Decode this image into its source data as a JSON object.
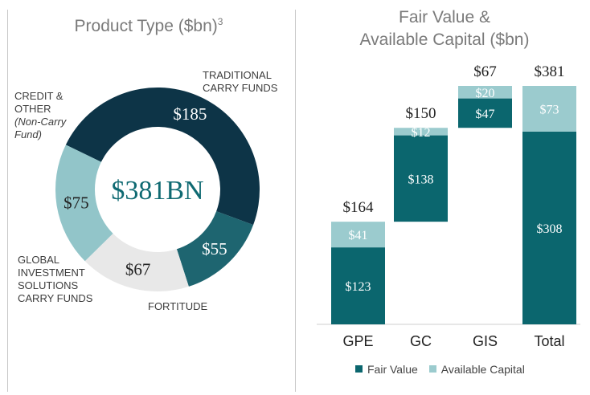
{
  "donut": {
    "title": "Product Type ($bn)",
    "title_sup": "3",
    "center_label": "$381BN",
    "labels": {
      "traditional": "TRADITIONAL\nCARRY FUNDS",
      "credit": "CREDIT &\nOTHER",
      "credit_sub": "(Non-Carry\nFund)",
      "gis": "GLOBAL\nINVESTMENT\nSOLUTIONS\nCARRY FUNDS",
      "fortitude": "FORTITUDE"
    }
  },
  "bars": {
    "title_line1": "Fair Value &",
    "title_line2": "Available Capital ($bn)"
  },
  "chart_data": [
    {
      "type": "pie",
      "title": "Product Type ($bn)",
      "total_label": "$381BN",
      "slices": [
        {
          "name": "TRADITIONAL CARRY FUNDS",
          "value": 185,
          "label": "$185",
          "color": "#0d3447"
        },
        {
          "name": "FORTITUDE",
          "value": 55,
          "label": "$55",
          "color": "#1e6570"
        },
        {
          "name": "GLOBAL INVESTMENT SOLUTIONS CARRY FUNDS",
          "value": 67,
          "label": "$67",
          "color": "#e8e8e8"
        },
        {
          "name": "CREDIT & OTHER (Non-Carry Fund)",
          "value": 75,
          "label": "$75",
          "color": "#92c5c9"
        }
      ]
    },
    {
      "type": "bar",
      "title": "Fair Value & Available Capital ($bn)",
      "stacked": true,
      "waterfall": true,
      "categories": [
        "GPE",
        "GC",
        "GIS",
        "Total"
      ],
      "series": [
        {
          "name": "Fair Value",
          "color": "#0b666e",
          "values": [
            123,
            138,
            47,
            308
          ],
          "labels": [
            "$123",
            "$138",
            "$47",
            "$308"
          ]
        },
        {
          "name": "Available Capital",
          "color": "#9bcbce",
          "values": [
            41,
            12,
            20,
            73
          ],
          "labels": [
            "$41",
            "$12",
            "$20",
            "$73"
          ]
        }
      ],
      "totals": [
        "$164",
        "$150",
        "$67",
        "$381"
      ],
      "legend": "bottom"
    }
  ]
}
